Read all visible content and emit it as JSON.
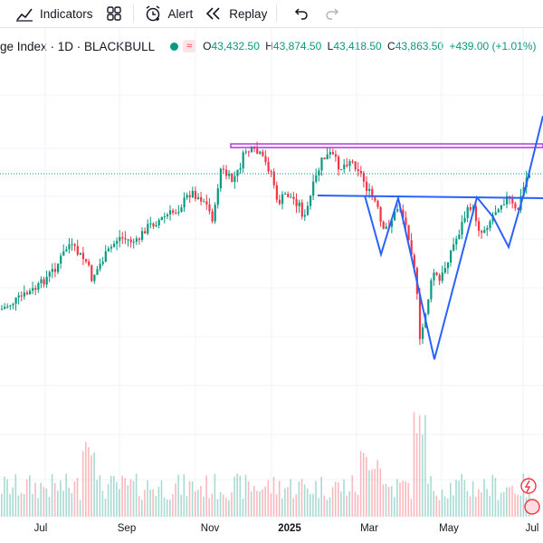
{
  "toolbar": {
    "indicators_label": "Indicators",
    "alert_label": "Alert",
    "replay_label": "Replay"
  },
  "legend": {
    "symbol_title": "ge Index · 1D · BLACKBULL",
    "open_key": "O",
    "open_value": "43,432.50",
    "high_key": "H",
    "high_value": "43,874.50",
    "low_key": "L",
    "low_value": "43,418.50",
    "close_key": "C",
    "close_value": "43,863.50",
    "change": "+439.00 (+1.01%)"
  },
  "colors": {
    "up": "#089981",
    "down": "#f23645",
    "drawing_blue": "#2962ff",
    "resistance_magenta": "#b32bd6"
  },
  "x_axis": {
    "labels": [
      "Jul",
      "Sep",
      "Nov",
      "2025",
      "Mar",
      "May",
      "Jul"
    ]
  },
  "chart_data": {
    "type": "candlestick",
    "series_name": "Index daily candles with volume",
    "approx_close_path": [
      [
        "2024-06",
        39100
      ],
      [
        "2024-07",
        40200
      ],
      [
        "2024-08",
        40400
      ],
      [
        "2024-09",
        41400
      ],
      [
        "2024-10",
        42300
      ],
      [
        "2024-11",
        43900
      ],
      [
        "2024-12",
        42600
      ],
      [
        "2025-01",
        43700
      ],
      [
        "2025-02",
        43500
      ],
      [
        "2025-03",
        41600
      ],
      [
        "2025-04",
        38200
      ],
      [
        "2025-05",
        42100
      ],
      [
        "2025-06",
        42800
      ],
      [
        "2025-07",
        43863.5
      ]
    ],
    "drawings": [
      "resistance-line (magenta, near all-time high)",
      "neckline (blue, horizontal)",
      "head-and-shoulders pattern (blue zigzag)",
      "breakout arrow (blue)"
    ],
    "grid": true
  }
}
